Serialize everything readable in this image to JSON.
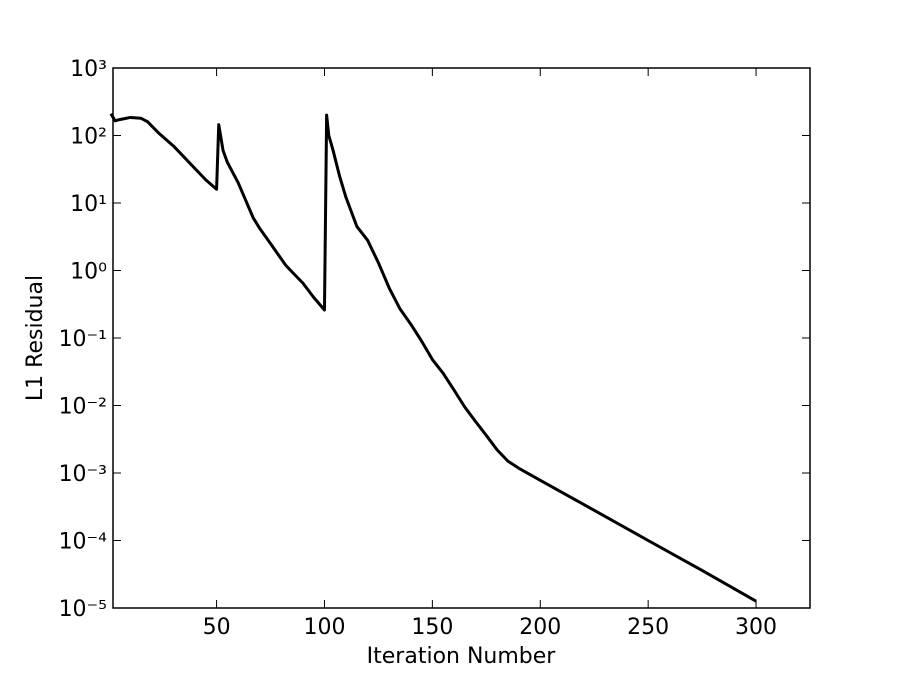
{
  "chart_data": {
    "type": "line",
    "x_label": "Iteration Number",
    "y_label": "L1 Residual",
    "x": [
      1,
      3,
      5,
      10,
      15,
      18,
      23,
      30,
      45,
      50,
      51,
      53,
      55,
      60,
      67,
      70,
      75,
      82,
      85,
      90,
      95,
      100,
      101,
      102,
      104,
      107,
      110,
      115,
      120,
      125,
      130,
      135,
      140,
      145,
      150,
      155,
      160,
      165,
      170,
      175,
      180,
      185,
      190,
      200,
      225,
      250,
      275,
      300
    ],
    "series": [
      {
        "name": "L1 Residual",
        "color": "#000000",
        "values": [
          210,
          165,
          172,
          185,
          180,
          160,
          110,
          70,
          22,
          16,
          145,
          60,
          40,
          20,
          6,
          4.2,
          2.5,
          1.2,
          0.95,
          0.65,
          0.4,
          0.26,
          200,
          100,
          60,
          25,
          12,
          4.5,
          2.8,
          1.3,
          0.55,
          0.27,
          0.16,
          0.09,
          0.048,
          0.03,
          0.017,
          0.0095,
          0.0058,
          0.0036,
          0.0022,
          0.0015,
          0.00118,
          0.00078,
          0.00028,
          0.0001,
          3.6e-05,
          1.26e-05
        ]
      }
    ],
    "xlim": [
      2,
      325
    ],
    "xticks": [
      50,
      100,
      150,
      200,
      250,
      300
    ],
    "ylim": [
      1e-05,
      1000
    ],
    "log_y": true,
    "yticks": [
      {
        "value": 1e-05,
        "label": "10⁻⁵"
      },
      {
        "value": 0.0001,
        "label": "10⁻⁴"
      },
      {
        "value": 0.001,
        "label": "10⁻³"
      },
      {
        "value": 0.01,
        "label": "10⁻²"
      },
      {
        "value": 0.1,
        "label": "10⁻¹"
      },
      {
        "value": 1,
        "label": "10⁰"
      },
      {
        "value": 10,
        "label": "10¹"
      },
      {
        "value": 100,
        "label": "10²"
      },
      {
        "value": 1000,
        "label": "10³"
      }
    ]
  }
}
